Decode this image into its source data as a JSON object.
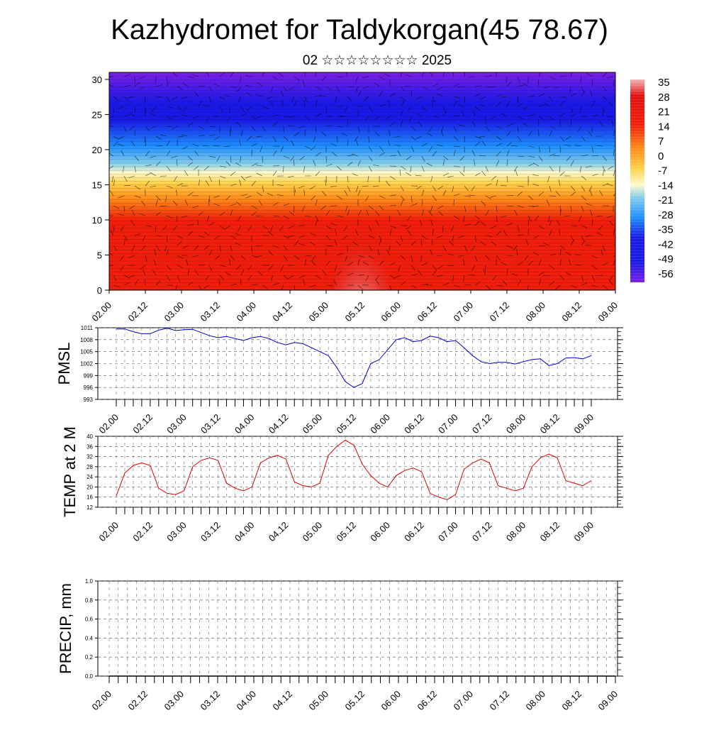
{
  "title": "Kazhydromet for Taldykorgan(45 78.67)",
  "subtitle": "02 ☆☆☆☆☆☆☆☆ 2025",
  "chart_data": [
    {
      "type": "heatmap",
      "x_ticks": [
        "02.00",
        "02.12",
        "03.00",
        "03.12",
        "04.00",
        "04.12",
        "05.00",
        "05.12",
        "06.00",
        "06.12",
        "07.00",
        "07.12",
        "08.00",
        "08.12",
        "09.00"
      ],
      "y_ticks": [
        0,
        5,
        10,
        15,
        20,
        25,
        30
      ],
      "ylim": [
        0,
        31
      ],
      "colorbar_ticks": [
        35,
        28,
        21,
        14,
        7,
        0,
        -7,
        -14,
        -21,
        -28,
        -35,
        -42,
        -49,
        -56
      ],
      "colorbar_range": [
        -60,
        38
      ],
      "colors": [
        "#7b1fe8",
        "#1a1ae6",
        "#1e90ff",
        "#87ceeb",
        "#fffacd",
        "#ffd24a",
        "#ff8c1a",
        "#f01e0a",
        "#e01010",
        "#f4b6b6"
      ]
    },
    {
      "type": "line",
      "ylabel": "PMSL",
      "color": "#0000cc",
      "x_ticks": [
        "02.00",
        "02.12",
        "03.00",
        "03.12",
        "04.00",
        "04.12",
        "05.00",
        "05.12",
        "06.00",
        "06.12",
        "07.00",
        "07.12",
        "08.00",
        "08.12",
        "09.00"
      ],
      "y_ticks": [
        993,
        996,
        999,
        1002,
        1005,
        1008,
        1011
      ],
      "ylim": [
        993,
        1011
      ],
      "values": [
        1010.7,
        1010.7,
        1010.0,
        1009.5,
        1009.5,
        1010.4,
        1010.9,
        1010.3,
        1010.5,
        1010.6,
        1009.8,
        1009.0,
        1008.5,
        1008.8,
        1008.3,
        1007.8,
        1008.5,
        1008.8,
        1008.3,
        1007.3,
        1006.7,
        1007.3,
        1007.0,
        1006.0,
        1005.0,
        1004.0,
        1001.0,
        997.5,
        996.0,
        997.0,
        1002.0,
        1003.0,
        1005.5,
        1008.0,
        1008.5,
        1007.5,
        1007.8,
        1008.9,
        1008.5,
        1007.5,
        1007.8,
        1006.0,
        1004.0,
        1002.5,
        1002.0,
        1002.3,
        1002.3,
        1001.9,
        1002.5,
        1003.0,
        1003.2,
        1001.5,
        1002.0,
        1003.4,
        1003.5,
        1003.2,
        1004.0
      ]
    },
    {
      "type": "line",
      "ylabel": "TEMP at 2 M",
      "color": "#dd0000",
      "x_ticks": [
        "02.00",
        "02.12",
        "03.00",
        "03.12",
        "04.00",
        "04.12",
        "05.00",
        "05.12",
        "06.00",
        "06.12",
        "07.00",
        "07.12",
        "08.00",
        "08.12",
        "09.00"
      ],
      "y_ticks": [
        12,
        16,
        20,
        24,
        28,
        32,
        36,
        40
      ],
      "ylim": [
        12,
        40
      ],
      "values": [
        16.5,
        25.5,
        28.5,
        29.5,
        28.5,
        19.5,
        17.5,
        17.0,
        18.5,
        28.0,
        30.5,
        31.5,
        30.5,
        21.5,
        19.5,
        18.5,
        20.0,
        29.5,
        31.5,
        32.5,
        31.0,
        22.0,
        20.5,
        20.0,
        21.5,
        32.5,
        36.0,
        38.5,
        36.5,
        29.0,
        24.5,
        21.5,
        20.0,
        24.5,
        26.5,
        27.5,
        26.0,
        17.5,
        16.0,
        15.0,
        17.0,
        27.0,
        29.5,
        31.0,
        29.5,
        20.5,
        19.5,
        18.5,
        19.5,
        28.0,
        31.5,
        33.0,
        31.5,
        22.5,
        21.5,
        20.5,
        22.5
      ]
    },
    {
      "type": "line",
      "ylabel": "PRECIP, mm",
      "color": "#000000",
      "x_ticks": [
        "02.00",
        "02.12",
        "03.00",
        "03.12",
        "04.00",
        "04.12",
        "05.00",
        "05.12",
        "06.00",
        "06.12",
        "07.00",
        "07.12",
        "08.00",
        "08.12",
        "09.00"
      ],
      "y_ticks": [
        0.0,
        0.2,
        0.4,
        0.6,
        0.8,
        1.0
      ],
      "y_tick_labels": [
        "0.0",
        "0.2",
        "0.4",
        "0.6",
        "0.8",
        "1.0"
      ],
      "ylim": [
        0,
        1
      ],
      "values": [
        0,
        0,
        0,
        0,
        0,
        0,
        0,
        0,
        0,
        0,
        0,
        0,
        0,
        0,
        0,
        0,
        0,
        0,
        0,
        0,
        0,
        0,
        0,
        0,
        0,
        0,
        0,
        0,
        0,
        0,
        0,
        0,
        0,
        0,
        0,
        0,
        0,
        0,
        0,
        0,
        0,
        0,
        0,
        0,
        0,
        0,
        0,
        0,
        0,
        0,
        0,
        0,
        0,
        0,
        0,
        0,
        0
      ]
    }
  ]
}
